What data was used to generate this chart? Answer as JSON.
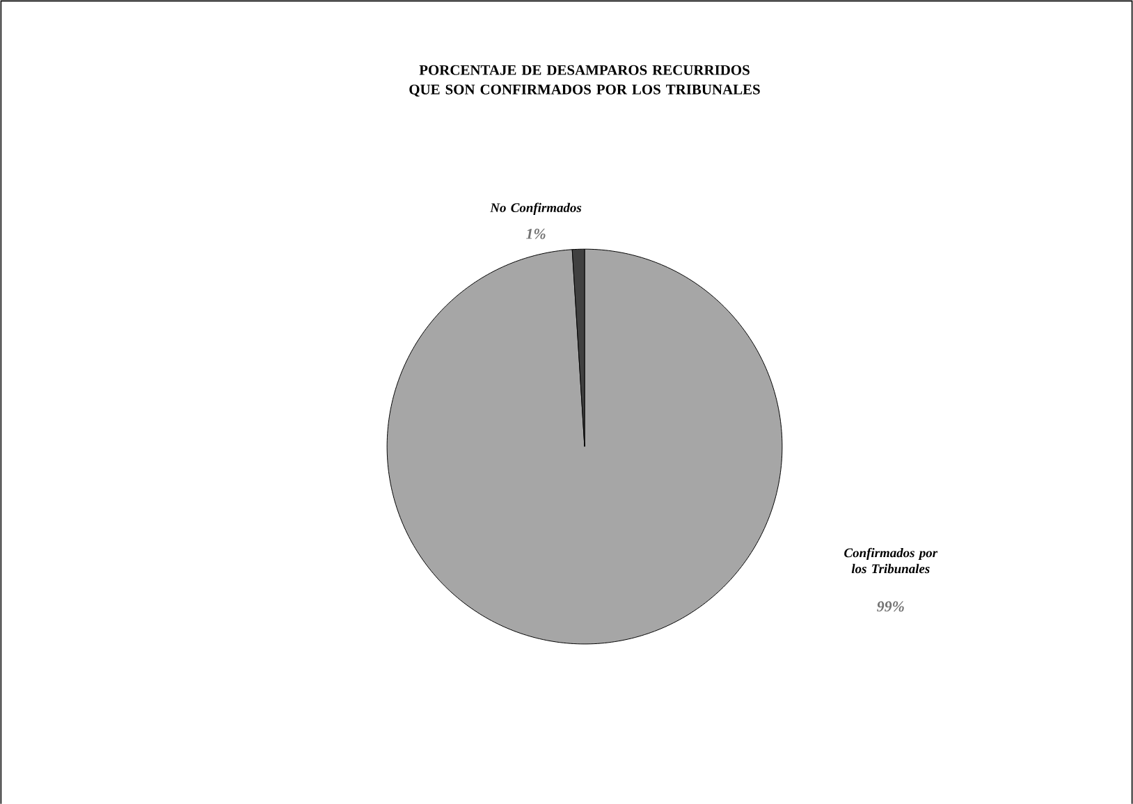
{
  "chart_data": {
    "type": "pie",
    "title": "PORCENTAJE DE DESAMPAROS RECURRIDOS QUE SON CONFIRMADOS POR LOS TRIBUNALES",
    "categories": [
      "Confirmados por los Tribunales",
      "No Confirmados"
    ],
    "values": [
      99,
      1
    ],
    "colors": [
      "#a6a6a6",
      "#404040"
    ],
    "value_labels": [
      "99%",
      "1%"
    ],
    "legend": false
  }
}
